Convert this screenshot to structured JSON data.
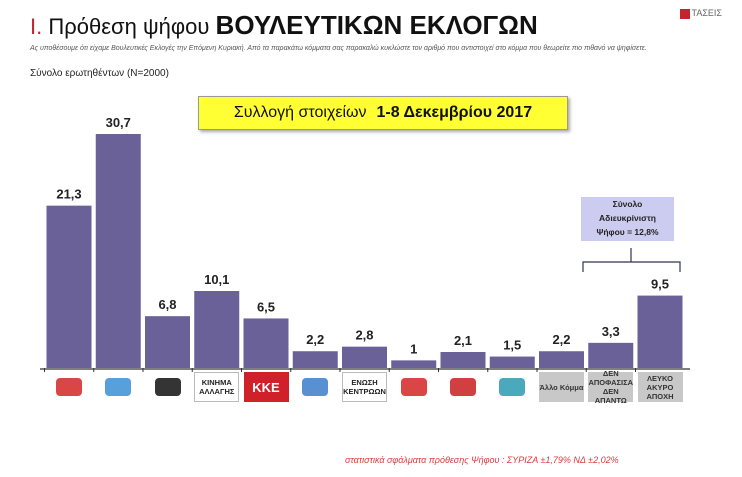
{
  "header": {
    "title_num": "I.",
    "title_main": "Πρόθεση ψήφου",
    "title_big": "ΒΟΥΛΕΥΤΙΚΩΝ ΕΚΛΟΓΩΝ",
    "description": "Ας υποθέσουμε ότι είχαμε Βουλευτικές Εκλογές την Επόμενη Κυριακή. Από τα παρακάτω κόμματα σας παρακαλώ κυκλώστε τον αριθμό που αντιστοιχεί στο κόμμα που θεωρείτε πιο πιθανό να ψηφίσετε.",
    "sample": "Σύνολο ερωτηθέντων (N=2000)",
    "logo_text": "ΤΑΣΕΙΣ"
  },
  "date_box": {
    "label": "Συλλογή στοιχείων",
    "dates": "1-8 Δεκεμβρίου 2017"
  },
  "note": {
    "line1": "Σύνολο",
    "line2": "Αδιευκρίνιστη",
    "line3": "Ψήφου = 12,8%"
  },
  "footer": "στατιστικά σφάλματα πρόθεσης Ψήφου : ΣΥΡΙΖΑ ±1,79% ΝΔ ±2,02%",
  "colors": {
    "bar": "#6a6199",
    "date_box": "#ffff33",
    "note": "#ccccf0",
    "footer": "#e0393a"
  },
  "chart_data": {
    "type": "bar",
    "ylim": [
      0,
      32
    ],
    "grid": false,
    "categories": [
      {
        "icon": "party-logo-red-flag-star",
        "label": ""
      },
      {
        "icon": "party-logo-blue-script",
        "label": ""
      },
      {
        "icon": "party-logo-meander-wreath",
        "label": ""
      },
      {
        "icon": "",
        "label": "ΚΙΝΗΜΑ ΑΛΛΑΓΗΣ"
      },
      {
        "icon": "",
        "label": "ΚΚΕ"
      },
      {
        "icon": "party-logo-blue-wave",
        "label": ""
      },
      {
        "icon": "",
        "label": "ΕΝΩΣΗ ΚΕΝΤΡΩΩΝ"
      },
      {
        "icon": "party-logo-red-star-circle",
        "label": ""
      },
      {
        "icon": "party-logo-red-wordmark",
        "label": ""
      },
      {
        "icon": "party-logo-sailboats",
        "label": ""
      },
      {
        "icon": "",
        "label": "Άλλο Κόμμα"
      },
      {
        "icon": "",
        "label": "ΔΕΝ ΑΠΟΦΑΣΙΣΑ ΔΕΝ ΑΠΑΝΤΩ"
      },
      {
        "icon": "",
        "label": "ΛΕΥΚΟ ΑΚΥΡΟ ΑΠΟΧΗ"
      }
    ],
    "values": [
      21.3,
      30.7,
      6.8,
      10.1,
      6.5,
      2.2,
      2.8,
      1,
      2.1,
      1.5,
      2.2,
      3.3,
      9.5
    ],
    "data_labels": [
      "21,3",
      "30,7",
      "6,8",
      "10,1",
      "6,5",
      "2,2",
      "2,8",
      "1",
      "2,1",
      "1,5",
      "2,2",
      "3,3",
      "9,5"
    ]
  }
}
